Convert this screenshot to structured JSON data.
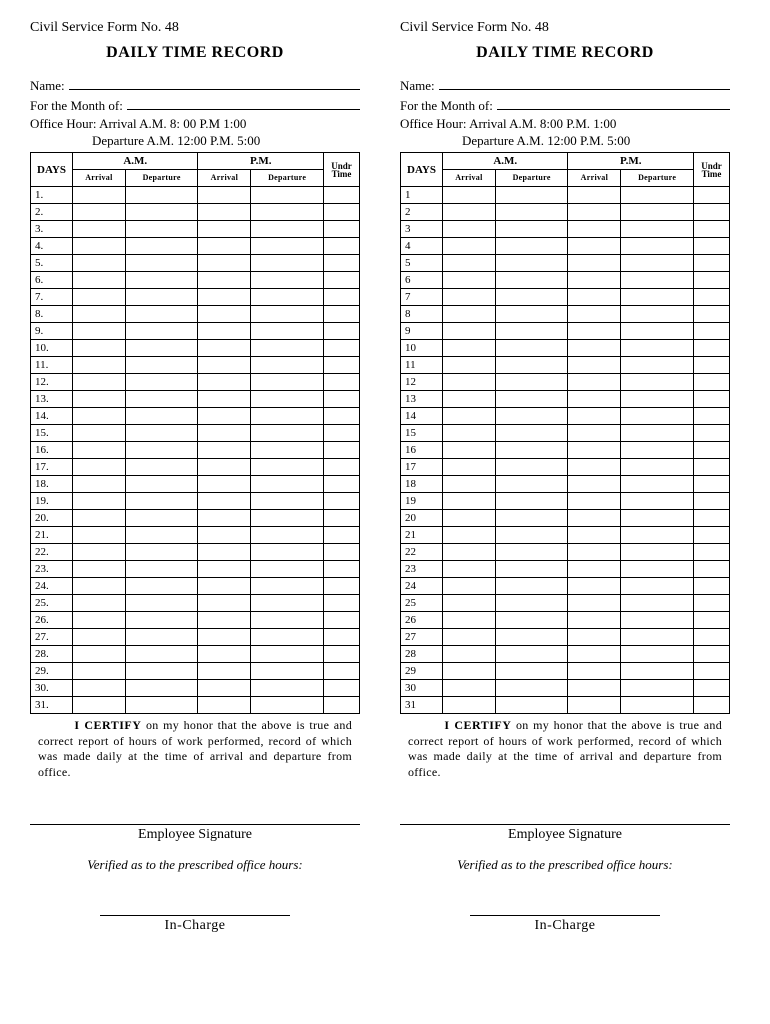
{
  "form": {
    "header": "Civil Service Form No. 48",
    "title": "DAILY TIME RECORD",
    "name_label": "Name:",
    "month_label": "For the Month of:",
    "office_hour_1_left": "Office Hour:    Arrival A.M. 8: 00       P.M 1:00",
    "office_hour_2_left": "Departure A.M. 12:00      P.M. 5:00",
    "office_hour_1_right": "Office Hour:    Arrival A.M.  8:00         P.M. 1:00",
    "office_hour_2_right": "Departure A.M. 12:00        P.M. 5:00",
    "table": {
      "days_header": "DAYS",
      "am_header": "A.M.",
      "pm_header": "P.M.",
      "arrival": "Arrival",
      "departure": "Departure",
      "undr": "Undr",
      "time": "Time",
      "days_left": [
        "1.",
        "2.",
        "3.",
        "4.",
        "5.",
        "6.",
        "7.",
        "8.",
        "9.",
        "10.",
        "11.",
        "12.",
        "13.",
        "14.",
        "15.",
        "16.",
        "17.",
        "18.",
        "19.",
        "20.",
        "21.",
        "22.",
        "23.",
        "24.",
        "25.",
        "26.",
        "27.",
        "28.",
        "29.",
        "30.",
        "31."
      ],
      "days_right": [
        "1",
        "2",
        "3",
        "4",
        "5",
        "6",
        "7",
        "8",
        "9",
        "10",
        "11",
        "12",
        "13",
        "14",
        "15",
        "16",
        "17",
        "18",
        "19",
        "20",
        "21",
        "22",
        "23",
        "24",
        "25",
        "26",
        "27",
        "28",
        "29",
        "30",
        "31"
      ]
    },
    "certify_bold": "I CERTIFY",
    "certify_left": " on my honor that the above is true and correct report of hours of work performed, record of which was made daily at the time of arrival and departure from office.",
    "certify_right": " on my honor that the above is true and correct report of hours of work performed, record of which was made daily at the time of arrival and departure from office.",
    "emp_sig": "Employee Signature",
    "verified": "Verified as to the prescribed office hours:",
    "incharge": "In-Charge"
  }
}
